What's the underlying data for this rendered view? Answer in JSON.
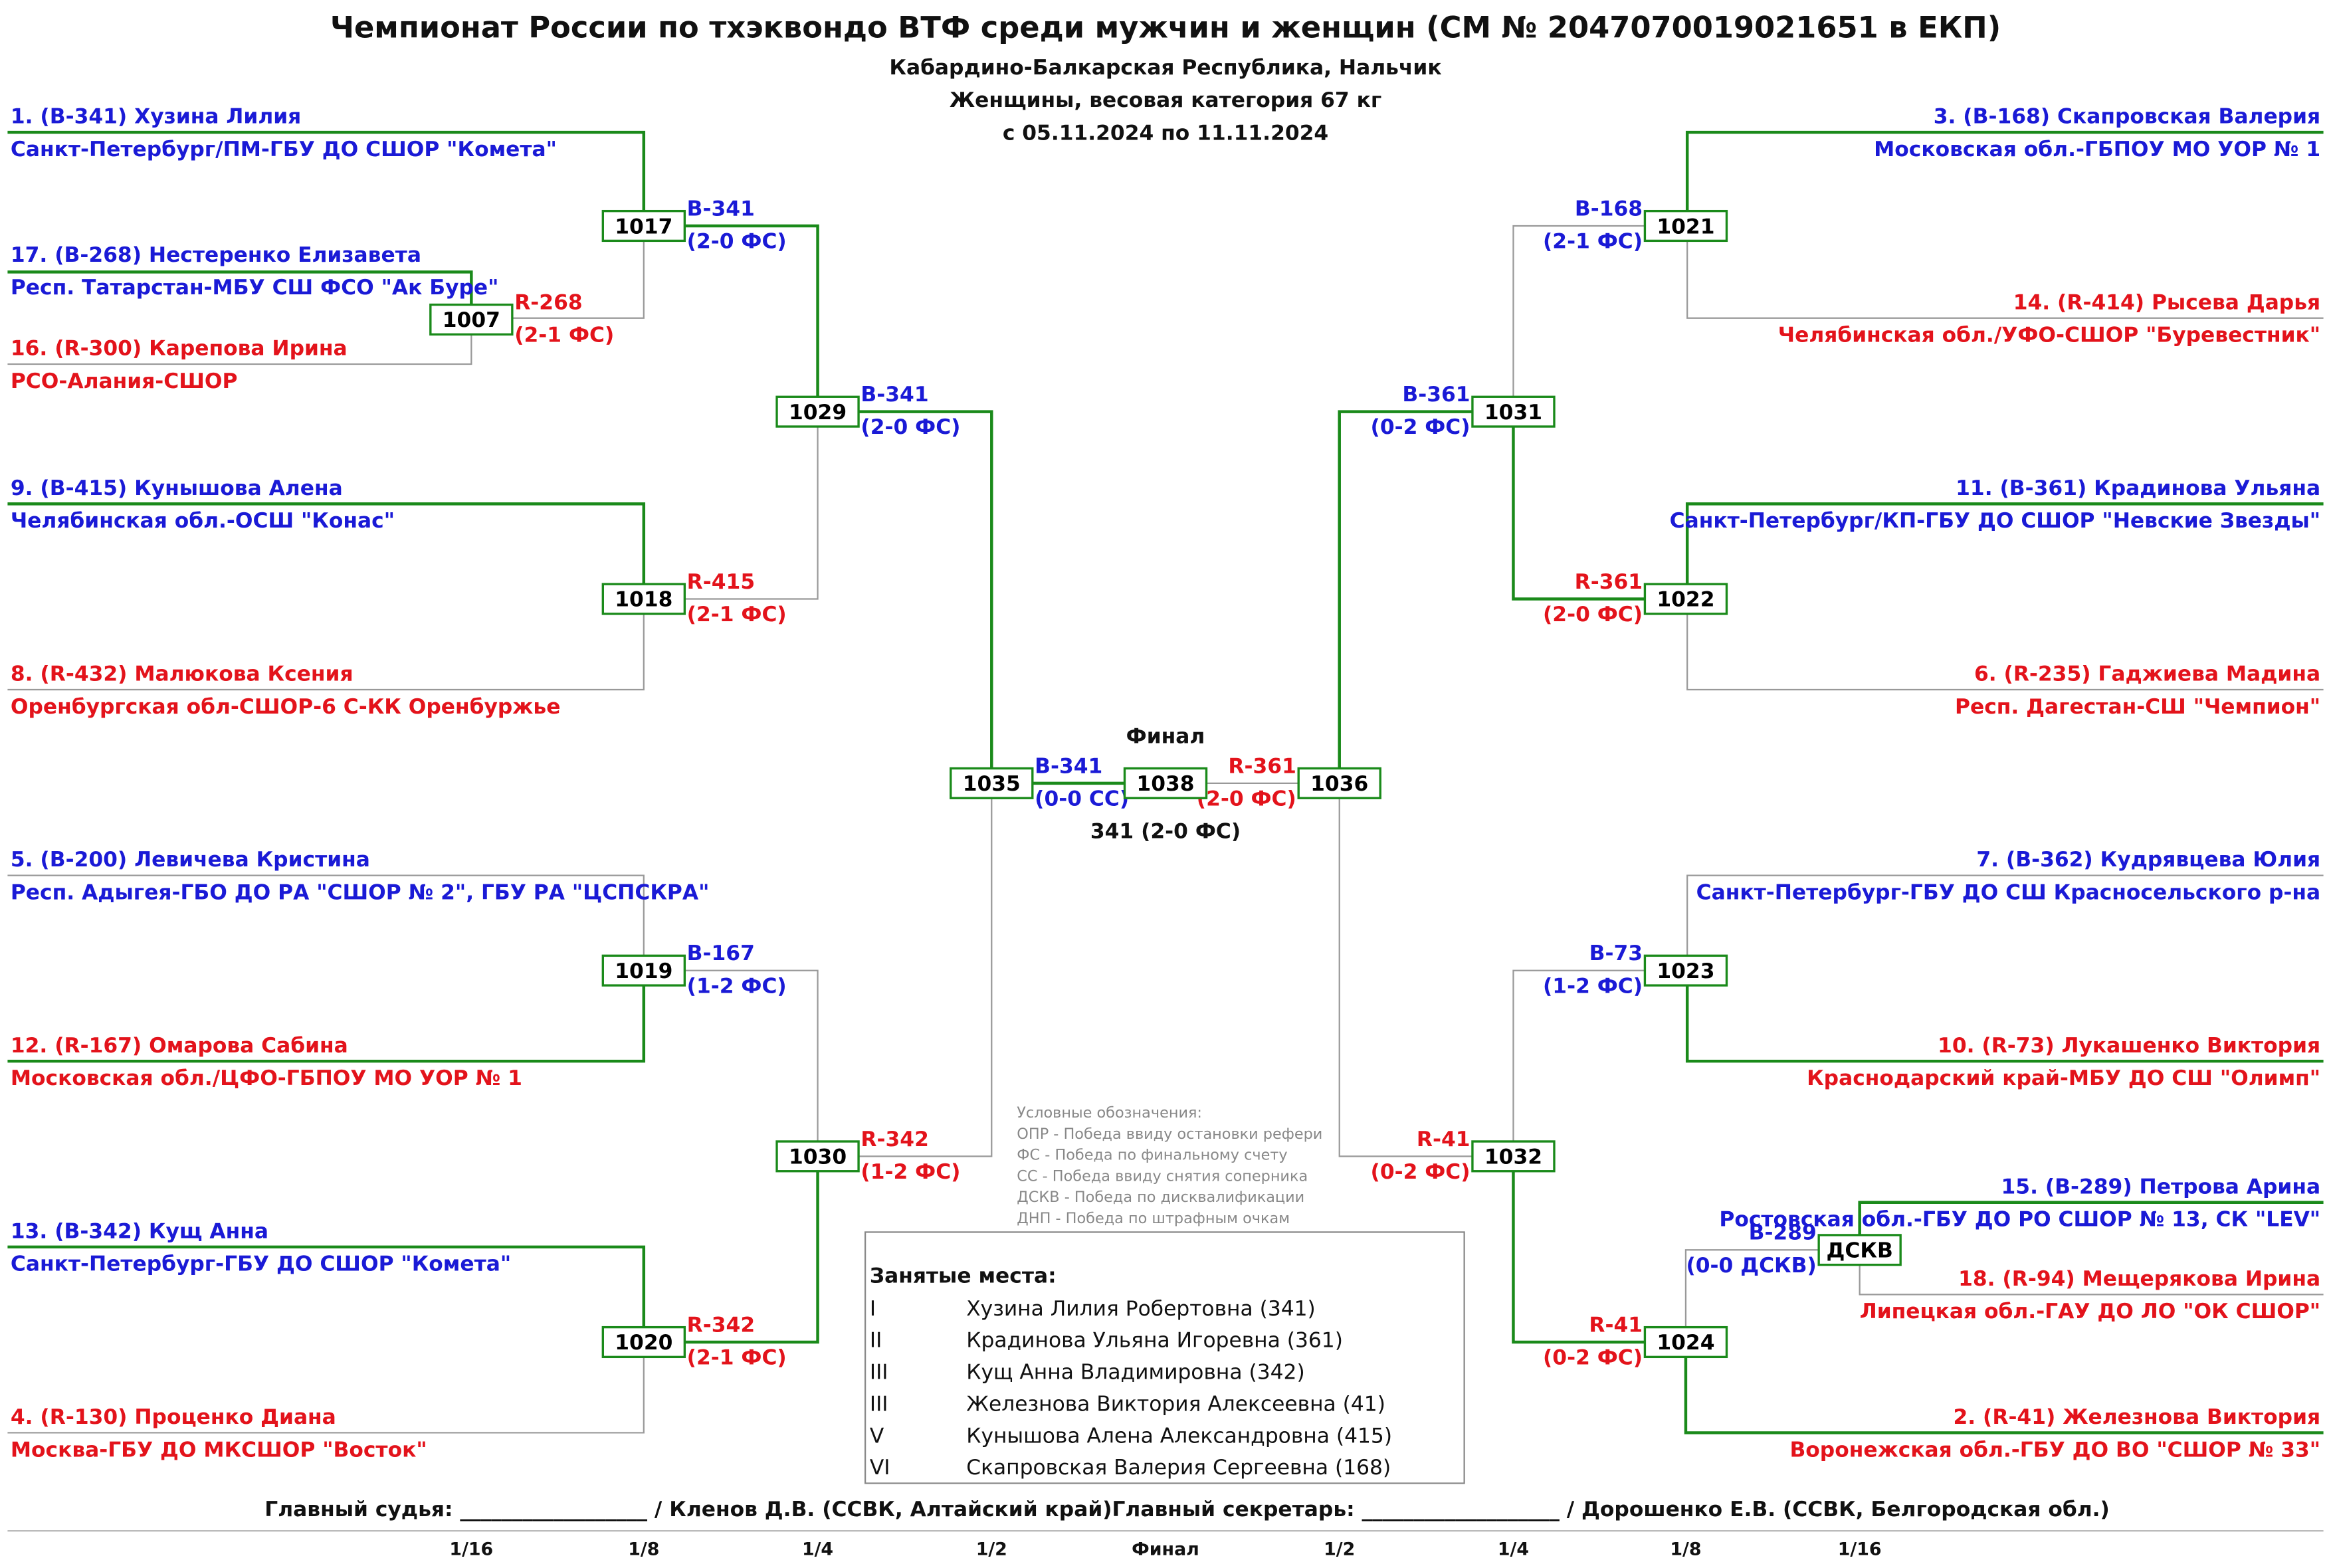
{
  "header": {
    "title": "Чемпионат России по тхэквондо ВТФ среди мужчин и женщин (СМ № 2047070019021651 в ЕКП)",
    "lines": [
      "Кабардино-Балкарская Республика, Нальчик",
      "Женщины, весовая категория 67 кг",
      "с 05.11.2024 по 11.11.2024"
    ]
  },
  "athletes": [
    {
      "name": "1. (B-341) Хузина Лилия",
      "club": "Санкт-Петербург/ПМ-ГБУ ДО СШОР \"Комета\""
    },
    {
      "name": "17. (B-268) Нестеренко Елизавета",
      "club": "Респ. Татарстан-МБУ СШ ФСО \"Ак Буре\""
    },
    {
      "name": "16. (R-300) Карепова Ирина",
      "club": "РСО-Алания-СШОР"
    },
    {
      "name": "9. (B-415) Кунышова Алена",
      "club": "Челябинская обл.-ОСШ \"Конас\""
    },
    {
      "name": "8. (R-432) Малюкова Ксения",
      "club": "Оренбургская обл-СШОР-6 С-КК Оренбуржье"
    },
    {
      "name": "5. (B-200) Левичева Кристина",
      "club": "Респ. Адыгея-ГБО ДО РА \"СШОР № 2\", ГБУ РА \"ЦСПСКРА\""
    },
    {
      "name": "12. (R-167) Омарова Сабина",
      "club": "Московская обл./ЦФО-ГБПОУ МО УОР № 1"
    },
    {
      "name": "13. (B-342) Кущ Анна",
      "club": "Санкт-Петербург-ГБУ ДО СШОР \"Комета\""
    },
    {
      "name": "4. (R-130) Проценко Диана",
      "club": "Москва-ГБУ ДО МКСШОР \"Восток\""
    },
    {
      "name": "3. (B-168) Скапровская Валерия",
      "club": "Московская обл.-ГБПОУ МО УОР № 1"
    },
    {
      "name": "14. (R-414) Рысева Дарья",
      "club": "Челябинская обл./УФО-СШОР \"Буревестник\""
    },
    {
      "name": "11. (B-361) Кpадинова Ульяна",
      "club": "Санкт-Петербург/КП-ГБУ ДО СШОР \"Невские Звезды\""
    },
    {
      "name": "6. (R-235) Гаджиева Мадина",
      "club": "Респ. Дагестан-СШ \"Чемпион\""
    },
    {
      "name": "7. (B-362) Кудрявцева Юлия",
      "club": "Санкт-Петербург-ГБУ ДО СШ Красносельского р-на"
    },
    {
      "name": "10. (R-73) Лукашенко Виктория",
      "club": "Краснодарский край-МБУ ДО СШ \"Олимп\""
    },
    {
      "name": "15. (B-289) Петрова Арина",
      "club": "Ростовская обл.-ГБУ ДО РО СШОР № 13, СК \"LEV\""
    },
    {
      "name": "18. (R-94) Мещерякова Ирина",
      "club": "Липецкая обл.-ГАУ ДО ЛО \"ОК СШОР\""
    },
    {
      "name": "2. (R-41) Железнова Виктория",
      "club": "Воронежская обл.-ГБУ ДО ВО \"СШОР № 33\""
    }
  ],
  "matches": [
    {
      "id": "1007",
      "winner": "R-268",
      "score": "(2-1 ФС)"
    },
    {
      "id": "1017",
      "winner": "B-341",
      "score": "(2-0 ФС)"
    },
    {
      "id": "1018",
      "winner": "R-415",
      "score": "(2-1 ФС)"
    },
    {
      "id": "1019",
      "winner": "B-167",
      "score": "(1-2 ФС)"
    },
    {
      "id": "1020",
      "winner": "R-342",
      "score": "(2-1 ФС)"
    },
    {
      "id": "1029",
      "winner": "B-341",
      "score": "(2-0 ФС)"
    },
    {
      "id": "1030",
      "winner": "R-342",
      "score": "(1-2 ФС)"
    },
    {
      "id": "1035",
      "winner": "B-341",
      "score": "(0-0 СС)"
    },
    {
      "id": "1036",
      "winner": "R-361",
      "score": "(2-0 ФС)"
    },
    {
      "id": "1021",
      "winner": "B-168",
      "score": "(2-1 ФС)"
    },
    {
      "id": "1022",
      "winner": "R-361",
      "score": "(2-0 ФС)"
    },
    {
      "id": "1023",
      "winner": "B-73",
      "score": "(1-2 ФС)"
    },
    {
      "id": "1024",
      "winner": "R-41",
      "score": "(0-2 ФС)"
    },
    {
      "id": "1031",
      "winner": "B-361",
      "score": "(0-2 ФС)"
    },
    {
      "id": "1032",
      "winner": "R-41",
      "score": "(0-2 ФС)"
    },
    {
      "id": "ДСКВ",
      "winner": "B-289",
      "score": "(0-0 ДСКВ)"
    }
  ],
  "final": {
    "id": "1038",
    "title": "Финал",
    "result": "341 (2-0 ФС)"
  },
  "legend": [
    "Условные обозначения:",
    "ОПР - Победа ввиду остановки рефери",
    "ФС - Победа по финальному счету",
    "СС - Победа ввиду снятия соперника",
    "ДСКВ - Победа по дисквалификации",
    "ДНП - Победа по штрафным очкам"
  ],
  "places": {
    "title": "Занятые места:",
    "rows": [
      [
        "I",
        "Хузина Лилия Робертовна (341)"
      ],
      [
        "II",
        "Крадинова Ульяна Игоревна (361)"
      ],
      [
        "III",
        "Кущ Анна Владимировна (342)"
      ],
      [
        "III",
        "Железнова Виктория Алексеевна (41)"
      ],
      [
        "V",
        "Кунышова Алена Александровна (415)"
      ],
      [
        "VI",
        "Скапровская Валерия Сергеевна (168)"
      ]
    ]
  },
  "footer": {
    "judge": "Главный судья: __________________ / Кленов Д.В. (ССВК, Алтайский край)",
    "secretary": "Главный секретарь: ___________________ / Дорошенко Е.В. (ССВК, Белгородская обл.)"
  },
  "rounds": [
    "1/16",
    "1/8",
    "1/4",
    "1/2",
    "Финал",
    "1/2",
    "1/4",
    "1/8",
    "1/16"
  ]
}
